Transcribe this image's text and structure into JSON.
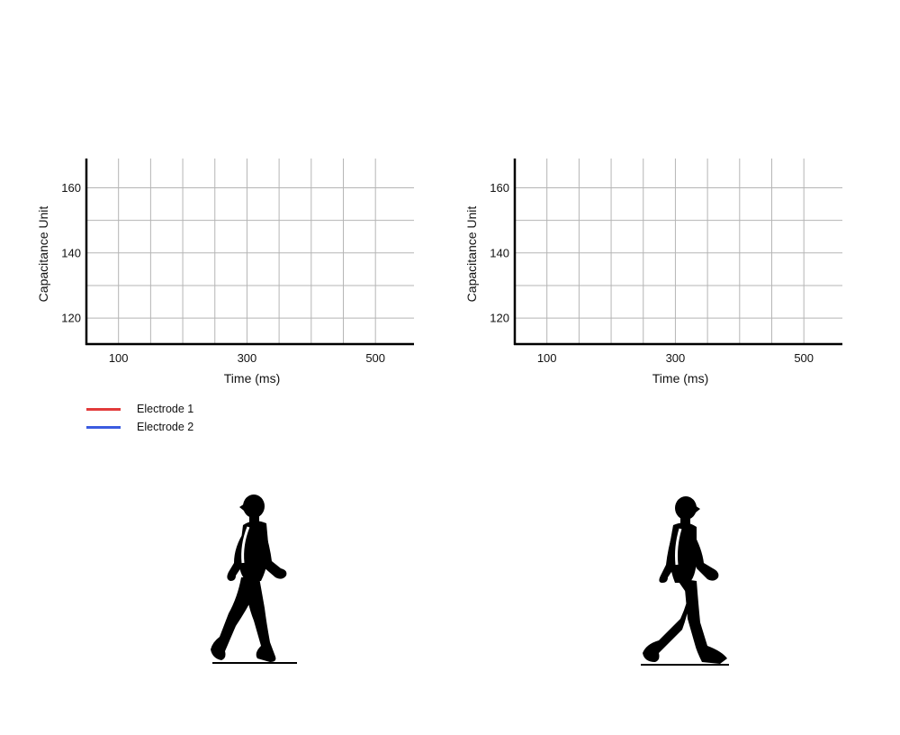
{
  "chart_data": [
    {
      "type": "line",
      "xlabel": "Time (ms)",
      "ylabel": "Capacitance Unit",
      "x_ticks": [
        100,
        300,
        500
      ],
      "y_ticks": [
        120,
        140,
        160
      ],
      "xlim": [
        50,
        560
      ],
      "ylim": [
        112,
        169
      ],
      "x_grid": [
        100,
        150,
        200,
        250,
        300,
        350,
        400,
        450,
        500
      ],
      "y_grid": [
        120,
        130,
        140,
        150,
        160
      ],
      "grid": true,
      "series": [
        {
          "name": "Electrode 1",
          "color": "#e23b3b",
          "values": []
        },
        {
          "name": "Electrode 2",
          "color": "#3b5be0",
          "values": []
        }
      ]
    },
    {
      "type": "line",
      "xlabel": "Time (ms)",
      "ylabel": "Capacitance Unit",
      "x_ticks": [
        100,
        300,
        500
      ],
      "y_ticks": [
        120,
        140,
        160
      ],
      "xlim": [
        50,
        560
      ],
      "ylim": [
        112,
        169
      ],
      "x_grid": [
        100,
        150,
        200,
        250,
        300,
        350,
        400,
        450,
        500
      ],
      "y_grid": [
        120,
        130,
        140,
        150,
        160
      ],
      "grid": true,
      "series": [
        {
          "name": "Electrode 1",
          "color": "#e23b3b",
          "values": []
        },
        {
          "name": "Electrode 2",
          "color": "#3b5be0",
          "values": []
        }
      ]
    }
  ],
  "legend": {
    "placement": "bottom-left",
    "items": [
      {
        "label": "Electrode 1",
        "color": "#e23b3b"
      },
      {
        "label": "Electrode 2",
        "color": "#3b5be0"
      }
    ]
  },
  "figures": [
    {
      "icon": "walking-person-icon",
      "facing": "left"
    },
    {
      "icon": "walking-person-icon",
      "facing": "right"
    }
  ]
}
